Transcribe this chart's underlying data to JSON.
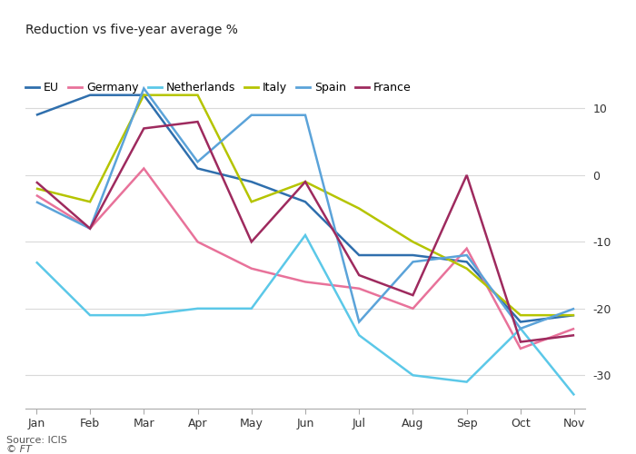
{
  "months": [
    "Jan",
    "Feb",
    "Mar",
    "Apr",
    "May",
    "Jun",
    "Jul",
    "Aug",
    "Sep",
    "Oct",
    "Nov"
  ],
  "series": {
    "EU": {
      "values": [
        9,
        12,
        12,
        1,
        -1,
        -4,
        -12,
        -12,
        -13,
        -22,
        -21
      ],
      "color": "#2f6fad",
      "linewidth": 1.8,
      "zorder": 4
    },
    "Germany": {
      "values": [
        -3,
        -8,
        1,
        -10,
        -14,
        -16,
        -17,
        -20,
        -11,
        -26,
        -23
      ],
      "color": "#e8729a",
      "linewidth": 1.8,
      "zorder": 4
    },
    "Netherlands": {
      "values": [
        -13,
        -21,
        -21,
        -20,
        -20,
        -9,
        -24,
        -30,
        -31,
        -23,
        -33
      ],
      "color": "#5bc8e8",
      "linewidth": 1.8,
      "zorder": 4
    },
    "Italy": {
      "values": [
        -2,
        -4,
        12,
        12,
        -4,
        -1,
        -5,
        -10,
        -14,
        -21,
        -21
      ],
      "color": "#b5c400",
      "linewidth": 1.8,
      "zorder": 4
    },
    "Spain": {
      "values": [
        -4,
        -8,
        13,
        2,
        9,
        9,
        -22,
        -13,
        -12,
        -23,
        -20
      ],
      "color": "#5ba3d9",
      "linewidth": 1.8,
      "zorder": 4
    },
    "France": {
      "values": [
        -1,
        -8,
        7,
        8,
        -10,
        -1,
        -15,
        -18,
        0,
        -25,
        -24
      ],
      "color": "#9e2a5e",
      "linewidth": 1.8,
      "zorder": 4
    }
  },
  "legend_order": [
    "EU",
    "Germany",
    "Netherlands",
    "Italy",
    "Spain",
    "France"
  ],
  "title": "Reduction vs five-year average %",
  "ylim": [
    -35,
    14
  ],
  "yticks": [
    10,
    0,
    -10,
    -20,
    -30
  ],
  "source_text": "Source: ICIS",
  "ft_text": "© FT",
  "background_color": "#FFFFFF",
  "grid_color": "#d9d9d9",
  "title_fontsize": 10,
  "legend_fontsize": 9,
  "tick_fontsize": 9
}
